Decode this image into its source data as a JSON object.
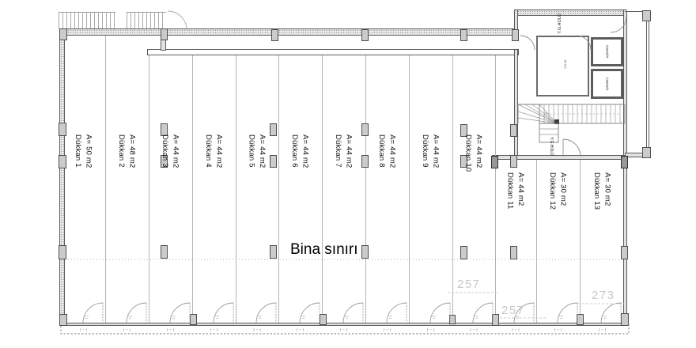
{
  "plan": {
    "labels": {
      "building_boundary": "Bina sınırı"
    },
    "shops": [
      {
        "name": "Dükkan 1",
        "area": "A= 50 m2"
      },
      {
        "name": "Dükkan 2",
        "area": "A= 48 m2"
      },
      {
        "name": "Dükkan 3",
        "area": "A= 44 m2"
      },
      {
        "name": "Dükkan 4",
        "area": "A= 44 m2"
      },
      {
        "name": "Dükkan 5",
        "area": "A= 44 m2"
      },
      {
        "name": "Dükkan 6",
        "area": "A= 44 m2"
      },
      {
        "name": "Dükkan 7",
        "area": "A= 44 m2"
      },
      {
        "name": "Dükkan 8",
        "area": "A= 44 m2"
      },
      {
        "name": "Dükkan 9",
        "area": "A= 44 m2"
      },
      {
        "name": "Dükkan 10",
        "area": "A= 44 m2"
      },
      {
        "name": "Dükkan 11",
        "area": "A= 44 m2"
      },
      {
        "name": "Dükkan 12",
        "area": "A= 30 m2"
      },
      {
        "name": "Dükkan 13",
        "area": "A= 30 m2"
      }
    ],
    "rooms": {
      "upper_hall": "Y.G.HOLÜ",
      "stair_hall": "Y.G.HOLÜ",
      "elevator": "Asansör",
      "hall_area": "60 m2"
    },
    "dimensions": {
      "d1": "257",
      "d2": "257",
      "d3": "273"
    },
    "colors": {
      "wall_line": "#5a5a5a",
      "wall_fill": "#e2e2e2",
      "partition": "#b5b5b5",
      "column_fill": "#cbcbcb",
      "dimension_text": "#c9c9c9",
      "text": "#101010"
    }
  }
}
